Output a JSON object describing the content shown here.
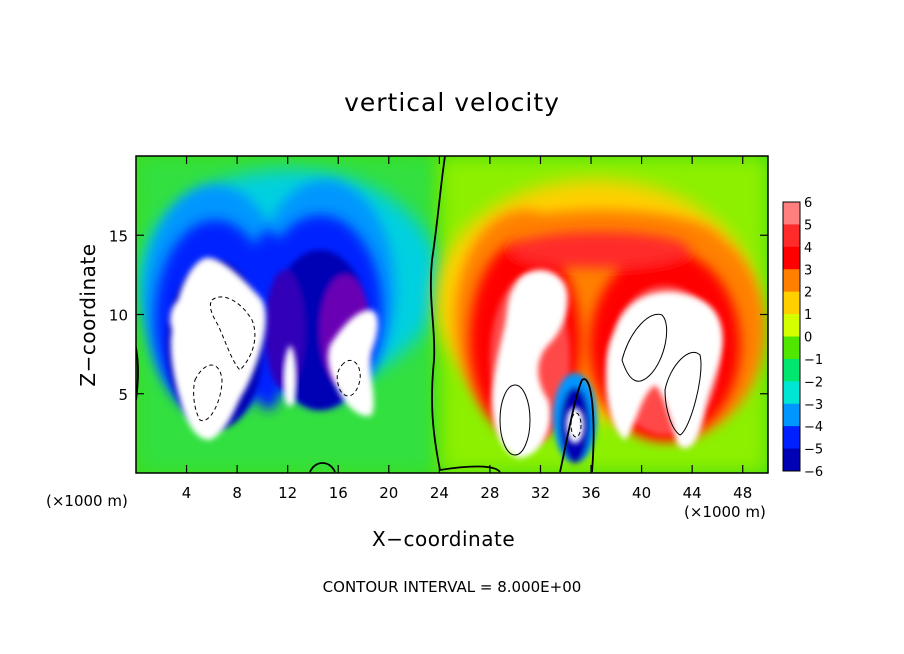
{
  "chart_data": {
    "type": "heatmap",
    "title": "vertical velocity",
    "xlabel": "X−coordinate",
    "ylabel": "Z−coordinate",
    "x_unit_label": "(×1000 m)",
    "xlim": [
      0,
      50
    ],
    "ylim": [
      0,
      20
    ],
    "x_ticks": [
      4,
      8,
      12,
      16,
      20,
      24,
      28,
      32,
      36,
      40,
      44,
      48
    ],
    "y_ticks": [
      5,
      10,
      15
    ],
    "colorbar": {
      "levels": [
        6,
        5,
        4,
        3,
        2,
        1,
        0,
        -1,
        -2,
        -3,
        -4,
        -5,
        -6
      ],
      "labels": [
        "6",
        "5",
        "4",
        "3",
        "2",
        "1",
        "0",
        "−1",
        "−2",
        "−3",
        "−4",
        "−5",
        "−6"
      ],
      "colors": [
        "#ff7f7f",
        "#ff2a2a",
        "#ff0000",
        "#ff8000",
        "#ffd000",
        "#d4ff00",
        "#50e600",
        "#00e66e",
        "#00e6d4",
        "#0096ff",
        "#0020ff",
        "#0000b4",
        "#7800b4"
      ]
    },
    "features": [
      {
        "sign": "negative",
        "x_range": [
          2,
          10
        ],
        "z_range": [
          2,
          14
        ]
      },
      {
        "sign": "negative",
        "x_range": [
          10,
          22
        ],
        "z_range": [
          4,
          16
        ]
      },
      {
        "sign": "positive",
        "x_range": [
          26,
          37
        ],
        "z_range": [
          1,
          16
        ]
      },
      {
        "sign": "positive",
        "x_range": [
          37,
          50
        ],
        "z_range": [
          1,
          15
        ]
      },
      {
        "sign": "negative",
        "x_range": [
          33,
          35.5
        ],
        "z_range": [
          1,
          7
        ]
      }
    ],
    "note": "CONTOUR INTERVAL = 8.000E+00"
  }
}
